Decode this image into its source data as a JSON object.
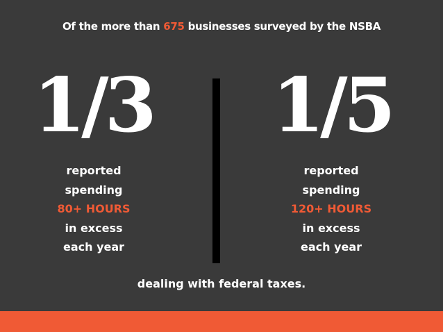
{
  "headline": {
    "prefix": "Of the more than ",
    "number": "675",
    "suffix": " businesses surveyed by the NSBA"
  },
  "left_stat": {
    "fraction": "1/3",
    "line1": "reported",
    "line2": "spending",
    "hours": "80+ HOURS",
    "line4": "in excess",
    "line5": "each year"
  },
  "right_stat": {
    "fraction": "1/5",
    "line1": "reported",
    "line2": "spending",
    "hours": "120+ HOURS",
    "line4": "in excess",
    "line5": "each year"
  },
  "footer": "dealing with federal taxes.",
  "colors": {
    "background": "#3a3a3a",
    "accent": "#f05a35",
    "text": "#ffffff",
    "divider": "#000000"
  }
}
